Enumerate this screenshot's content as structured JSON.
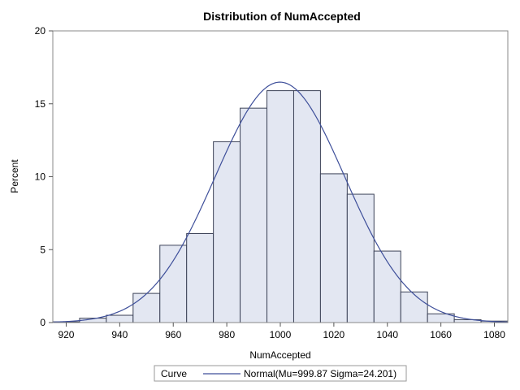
{
  "chart_data": {
    "type": "bar",
    "title": "Distribution of NumAccepted",
    "xlabel": "NumAccepted",
    "ylabel": "Percent",
    "xlim": [
      915,
      1085
    ],
    "ylim": [
      0,
      20
    ],
    "x_ticks": [
      920,
      940,
      960,
      980,
      1000,
      1020,
      1040,
      1060,
      1080
    ],
    "y_ticks": [
      0,
      5,
      10,
      15,
      20
    ],
    "bin_width": 10,
    "bins": [
      {
        "x": 920,
        "value": 0.05
      },
      {
        "x": 930,
        "value": 0.3
      },
      {
        "x": 940,
        "value": 0.5
      },
      {
        "x": 950,
        "value": 2.0
      },
      {
        "x": 960,
        "value": 5.3
      },
      {
        "x": 970,
        "value": 6.1
      },
      {
        "x": 980,
        "value": 12.4
      },
      {
        "x": 990,
        "value": 14.7
      },
      {
        "x": 1000,
        "value": 15.9
      },
      {
        "x": 1010,
        "value": 15.9
      },
      {
        "x": 1020,
        "value": 10.2
      },
      {
        "x": 1030,
        "value": 8.8
      },
      {
        "x": 1040,
        "value": 4.9
      },
      {
        "x": 1050,
        "value": 2.1
      },
      {
        "x": 1060,
        "value": 0.6
      },
      {
        "x": 1070,
        "value": 0.2
      },
      {
        "x": 1080,
        "value": 0.1
      }
    ],
    "curve": {
      "type": "normal",
      "mu": 999.87,
      "sigma": 24.201
    },
    "legend": {
      "placement": "bottom",
      "header": "Curve",
      "entry": "Normal(Mu=999.87 Sigma=24.201)"
    },
    "grid": false,
    "colors": {
      "bar_fill": "#e3e7f2",
      "bar_stroke": "#3c4257",
      "curve": "#3e4f9a"
    }
  }
}
